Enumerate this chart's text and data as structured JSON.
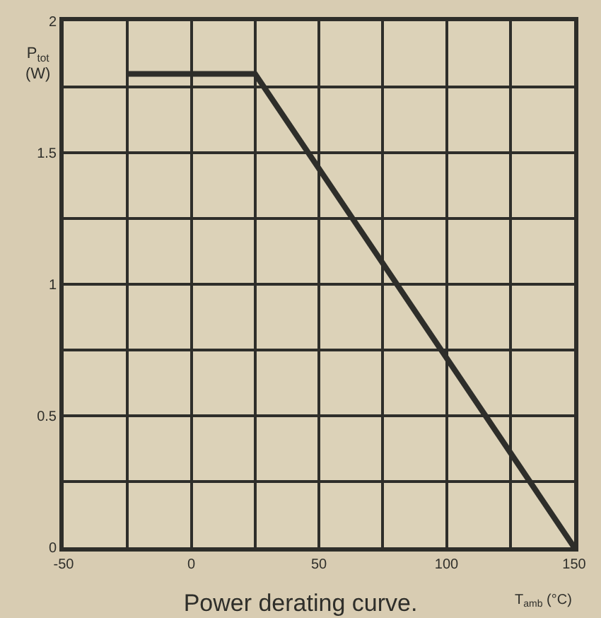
{
  "chart_data": {
    "type": "line",
    "title": "Power derating curve.",
    "xlabel": "T$_{amb}$ (°C)",
    "ylabel": "P$_{tot}$ (W)",
    "x": [
      -25,
      25,
      150
    ],
    "series": [
      {
        "color": "#2e2e2a",
        "values": [
          1.8,
          1.8,
          0
        ]
      }
    ],
    "xlim": [
      -50,
      150
    ],
    "ylim": [
      0,
      2
    ],
    "xticks": [
      -50,
      {
        "value": -25,
        "label": null
      },
      0,
      {
        "value": 25,
        "label": null
      },
      50,
      {
        "value": 75,
        "label": null
      },
      100,
      {
        "value": 125,
        "label": null
      },
      150
    ],
    "yticks": [
      0,
      {
        "value": 0.25,
        "label": null
      },
      0.5,
      {
        "value": 0.75,
        "label": null
      },
      1,
      {
        "value": 1.25,
        "label": null
      },
      1.5,
      {
        "value": 1.75,
        "label": null
      },
      2
    ],
    "grid": true,
    "marker": "none",
    "line_style": "solid"
  }
}
